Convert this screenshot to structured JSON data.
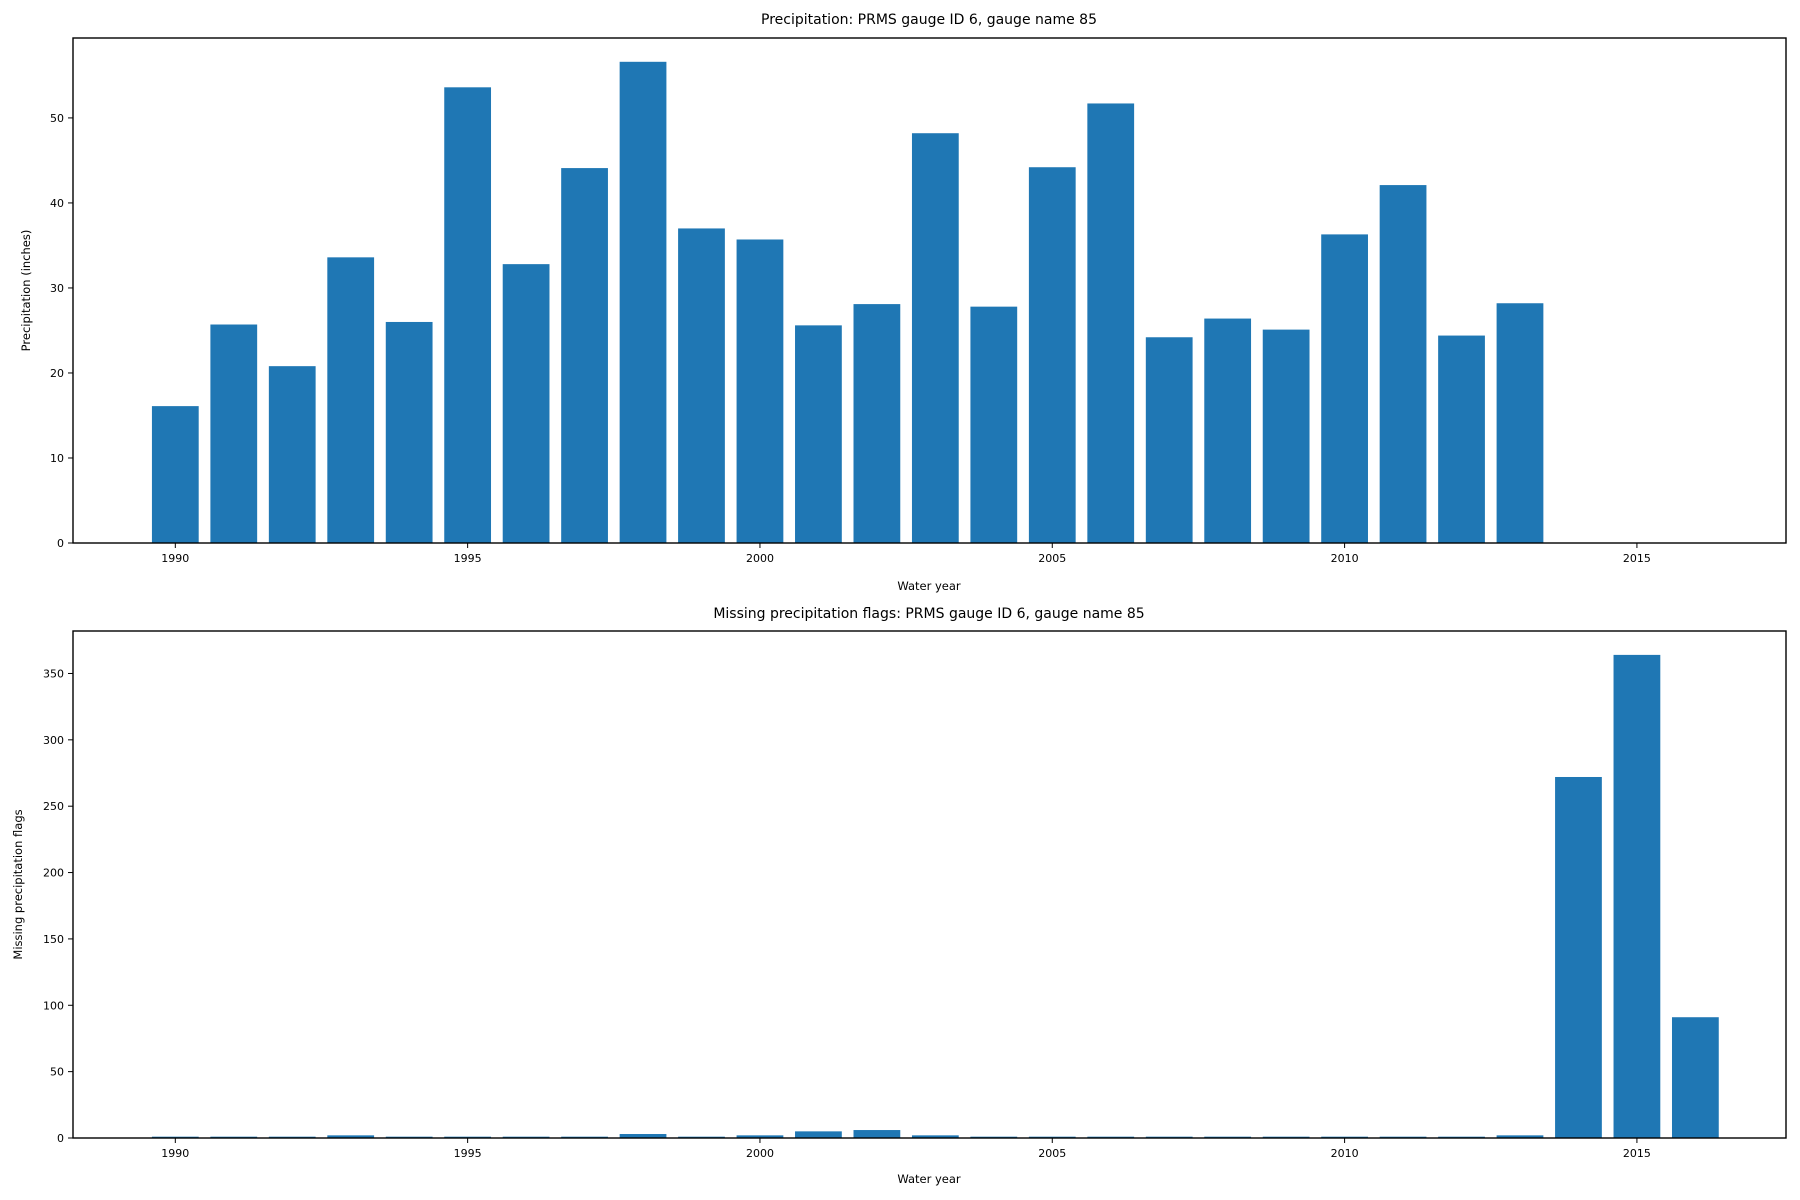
{
  "chart_data": [
    {
      "type": "bar",
      "title": "Precipitation: PRMS gauge ID 6, gauge name 85",
      "xlabel": "Water year",
      "ylabel": "Precipitation (inches)",
      "x": [
        1990,
        1991,
        1992,
        1993,
        1994,
        1995,
        1996,
        1997,
        1998,
        1999,
        2000,
        2001,
        2002,
        2003,
        2004,
        2005,
        2006,
        2007,
        2008,
        2009,
        2010,
        2011,
        2012,
        2013,
        2014,
        2015,
        2016
      ],
      "values": [
        16.1,
        25.7,
        20.8,
        33.6,
        26.0,
        53.6,
        32.8,
        44.1,
        56.6,
        37.0,
        35.7,
        25.6,
        28.1,
        48.2,
        27.8,
        44.2,
        51.7,
        24.2,
        26.4,
        25.1,
        36.3,
        42.1,
        24.4,
        28.2,
        0,
        0,
        0
      ],
      "xlim": [
        1988.25,
        2017.55
      ],
      "ylim": [
        0,
        59.4
      ],
      "xticks": [
        1990,
        1995,
        2000,
        2005,
        2010,
        2015
      ],
      "yticks": [
        0,
        10,
        20,
        30,
        40,
        50
      ],
      "bar_color": "#1f77b4",
      "grid": false,
      "legend": "none"
    },
    {
      "type": "bar",
      "title": "Missing precipitation flags: PRMS gauge ID 6, gauge name 85",
      "xlabel": "Water year",
      "ylabel": "Missing precipitation flags",
      "x": [
        1990,
        1991,
        1992,
        1993,
        1994,
        1995,
        1996,
        1997,
        1998,
        1999,
        2000,
        2001,
        2002,
        2003,
        2004,
        2005,
        2006,
        2007,
        2008,
        2009,
        2010,
        2011,
        2012,
        2013,
        2014,
        2015,
        2016
      ],
      "values": [
        1,
        1,
        1,
        2,
        1,
        1,
        1,
        1,
        3,
        1,
        2,
        5,
        6,
        2,
        1,
        1,
        1,
        1,
        1,
        1,
        1,
        1,
        1,
        2,
        272,
        364,
        91
      ],
      "xlim": [
        1988.25,
        2017.55
      ],
      "ylim": [
        0,
        382
      ],
      "xticks": [
        1990,
        1995,
        2000,
        2005,
        2010,
        2015
      ],
      "yticks": [
        0,
        50,
        100,
        150,
        200,
        250,
        300,
        350
      ],
      "bar_color": "#1f77b4",
      "grid": false,
      "legend": "none"
    }
  ]
}
